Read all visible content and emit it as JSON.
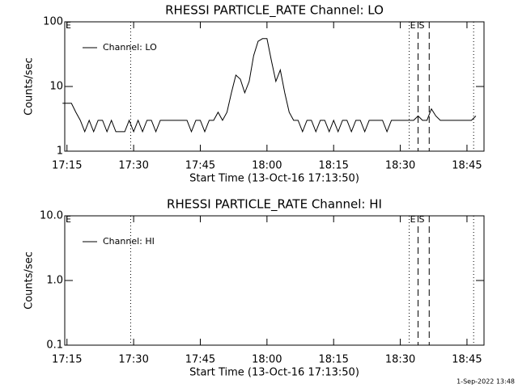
{
  "chart_data": [
    {
      "type": "line",
      "title": "RHESSI PARTICLE_RATE Channel: LO",
      "x_label": "Start Time (13-Oct-16 17:13:50)",
      "y_label": "Counts/sec",
      "log_y": true,
      "ylim": [
        1,
        100
      ],
      "yticks": [
        1,
        10,
        100
      ],
      "xlim": [
        "17:14:30",
        "18:48:50"
      ],
      "xticks": [
        "17:15",
        "17:30",
        "17:45",
        "18:00",
        "18:15",
        "18:30",
        "18:45"
      ],
      "legend": "top-left",
      "x": [
        "17:14",
        "17:15",
        "17:16",
        "17:17",
        "17:18",
        "17:19",
        "17:20",
        "17:21",
        "17:22",
        "17:23",
        "17:24",
        "17:25",
        "17:26",
        "17:27",
        "17:28",
        "17:29",
        "17:30",
        "17:31",
        "17:32",
        "17:33",
        "17:34",
        "17:35",
        "17:36",
        "17:37",
        "17:38",
        "17:39",
        "17:40",
        "17:41",
        "17:42",
        "17:43",
        "17:44",
        "17:45",
        "17:46",
        "17:47",
        "17:48",
        "17:49",
        "17:50",
        "17:51",
        "17:52",
        "17:53",
        "17:54",
        "17:55",
        "17:56",
        "17:57",
        "17:58",
        "17:59",
        "18:00",
        "18:01",
        "18:02",
        "18:03",
        "18:04",
        "18:05",
        "18:06",
        "18:07",
        "18:08",
        "18:09",
        "18:10",
        "18:11",
        "18:12",
        "18:13",
        "18:14",
        "18:15",
        "18:16",
        "18:17",
        "18:18",
        "18:19",
        "18:20",
        "18:21",
        "18:22",
        "18:23",
        "18:24",
        "18:25",
        "18:26",
        "18:27",
        "18:28",
        "18:29",
        "18:30",
        "18:31",
        "18:32",
        "18:33",
        "18:34",
        "18:35",
        "18:36",
        "18:37",
        "18:38",
        "18:39",
        "18:40",
        "18:41",
        "18:42",
        "18:43",
        "18:44",
        "18:45",
        "18:46",
        "18:47"
      ],
      "series": [
        {
          "name": "Channel: LO",
          "color": "#000000",
          "values": [
            5.5,
            5.5,
            5.5,
            4,
            3,
            2,
            3,
            2,
            3,
            3,
            2,
            3,
            2,
            2,
            2,
            3,
            2,
            3,
            2,
            3,
            3,
            2,
            3,
            3,
            3,
            3,
            3,
            3,
            3,
            2,
            3,
            3,
            2,
            3,
            3,
            4,
            3,
            4,
            8,
            15,
            13,
            8,
            12,
            30,
            50,
            55,
            55,
            25,
            12,
            18,
            8,
            4,
            3,
            3,
            2,
            3,
            3,
            2,
            3,
            3,
            2,
            3,
            2,
            3,
            3,
            2,
            3,
            3,
            2,
            3,
            3,
            3,
            3,
            2,
            3,
            3,
            3,
            3,
            3,
            3,
            3.5,
            3,
            3,
            4.5,
            3.5,
            3,
            3,
            3,
            3,
            3,
            3,
            3,
            3,
            3.5
          ]
        }
      ],
      "markers": [
        {
          "x": "17:29:20",
          "style": "dotted"
        },
        {
          "x": "18:32:00",
          "style": "dotted"
        },
        {
          "x": "18:34:00",
          "style": "dashed"
        },
        {
          "x": "18:36:30",
          "style": "dashed"
        },
        {
          "x": "18:46:30",
          "style": "dotted"
        }
      ],
      "marker_labels": [
        {
          "text": "E",
          "x": "17:14:30"
        },
        {
          "text": "E",
          "x": "18:32:00"
        },
        {
          "text": "S",
          "x": "18:34:00"
        }
      ]
    },
    {
      "type": "line",
      "title": "RHESSI PARTICLE_RATE Channel: HI",
      "x_label": "Start Time (13-Oct-16 17:13:50)",
      "y_label": "Counts/sec",
      "log_y": true,
      "ylim": [
        0.1,
        10
      ],
      "yticks": [
        0.1,
        {
          "value": 1,
          "label": "1.0"
        },
        {
          "value": 10,
          "label": "10.0"
        }
      ],
      "xlim": [
        "17:14:30",
        "18:48:50"
      ],
      "xticks": [
        "17:15",
        "17:30",
        "17:45",
        "18:00",
        "18:15",
        "18:30",
        "18:45"
      ],
      "legend": "top-left",
      "series": [
        {
          "name": "Channel: HI",
          "color": "#000000"
        }
      ],
      "markers": [
        {
          "x": "17:29:20",
          "style": "dotted"
        },
        {
          "x": "18:32:00",
          "style": "dotted"
        },
        {
          "x": "18:34:00",
          "style": "dashed"
        },
        {
          "x": "18:36:30",
          "style": "dashed"
        },
        {
          "x": "18:46:30",
          "style": "dotted"
        }
      ],
      "marker_labels": [
        {
          "text": "E",
          "x": "17:14:30"
        },
        {
          "text": "E",
          "x": "18:32:00"
        },
        {
          "text": "S",
          "x": "18:34:00"
        }
      ]
    }
  ],
  "footer": "1-Sep-2022 13:48"
}
